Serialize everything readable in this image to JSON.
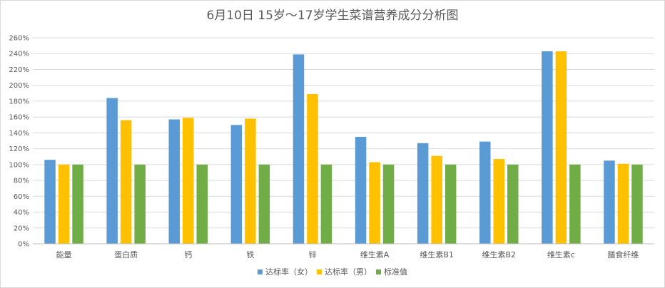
{
  "chart_data": {
    "type": "bar",
    "title": "6月10日 15岁～17岁学生菜谱营养成分分析图",
    "categories": [
      "能量",
      "蛋白质",
      "钙",
      "铁",
      "锌",
      "维生素A",
      "维生素B1",
      "维生素B2",
      "维生素c",
      "膳食纤维"
    ],
    "series": [
      {
        "name": "达标率（女）",
        "color": "#5b9bd5",
        "values": [
          106,
          184,
          157,
          150,
          239,
          135,
          127,
          129,
          243,
          105
        ]
      },
      {
        "name": "达标率（男）",
        "color": "#ffc000",
        "values": [
          100,
          156,
          159,
          158,
          189,
          103,
          111,
          107,
          243,
          101
        ]
      },
      {
        "name": "标准值",
        "color": "#70ad47",
        "values": [
          100,
          100,
          100,
          100,
          100,
          100,
          100,
          100,
          100,
          100
        ]
      }
    ],
    "y_ticks": [
      "0%",
      "20%",
      "40%",
      "60%",
      "80%",
      "100%",
      "120%",
      "140%",
      "160%",
      "180%",
      "200%",
      "220%",
      "240%",
      "260%"
    ],
    "ylim": [
      0,
      260
    ],
    "y_unit": "%",
    "grid": true,
    "legend_position": "bottom",
    "gridline_color": "#d9d9d9",
    "axis_color": "#bfbfbf"
  }
}
